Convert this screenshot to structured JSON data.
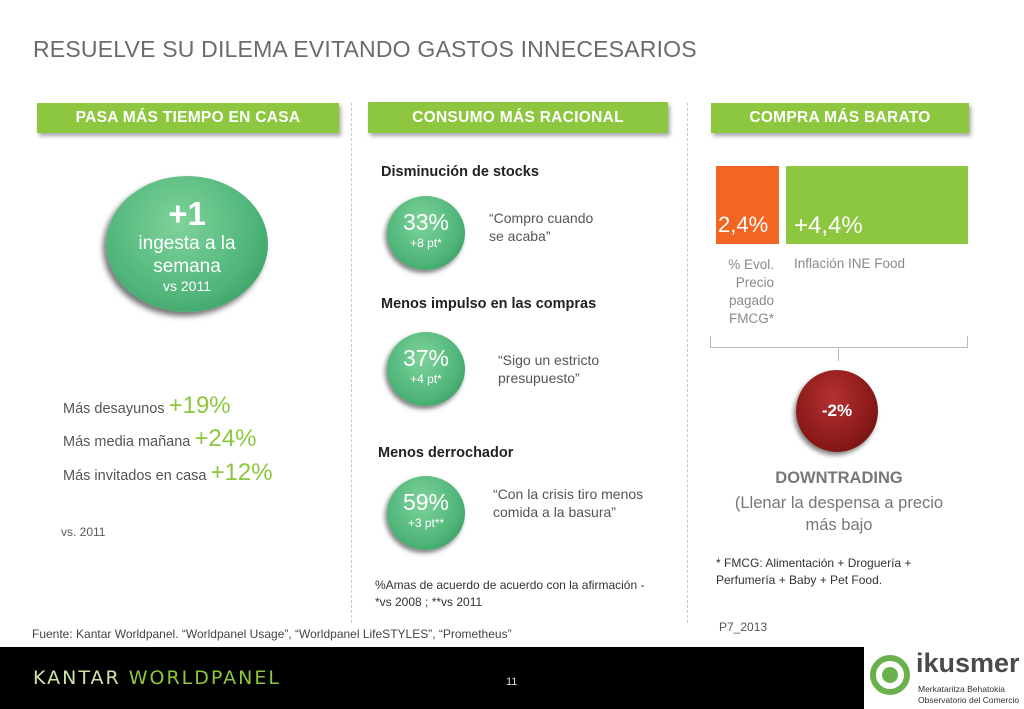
{
  "title": "RESUELVE SU DILEMA EVITANDO GASTOS INNECESARIOS",
  "colors": {
    "accent_green": "#8dc63f",
    "orange": "#f26522",
    "dark_red": "#8b1a1a",
    "bubble_green": "#4fb57a"
  },
  "col1": {
    "banner": "PASA MÁS TIEMPO EN CASA",
    "bubble": {
      "big": "+1",
      "line2": "ingesta a la",
      "line3": "semana",
      "line4": "vs 2011"
    },
    "metrics": [
      {
        "label": "Más desayunos",
        "value": "+19%"
      },
      {
        "label": "Más media mañana",
        "value": "+24%"
      },
      {
        "label": "Más invitados en casa",
        "value": "+12%"
      }
    ],
    "note": "vs. 2011"
  },
  "col2": {
    "banner": "CONSUMO MÁS RACIONAL",
    "sections": [
      {
        "heading": "Disminución de stocks",
        "pct": "33%",
        "delta": "+8 pt*",
        "quote_l1": "“Compro cuando",
        "quote_l2": "se acaba”"
      },
      {
        "heading": "Menos impulso en las compras",
        "pct": "37%",
        "delta": "+4 pt*",
        "quote_l1": "“Sigo un estricto",
        "quote_l2": "presupuesto”"
      },
      {
        "heading": "Menos derrochador",
        "pct": "59%",
        "delta": "+3 pt**",
        "quote_l1": "“Con la crisis tiro menos",
        "quote_l2": "comida a la basura”"
      }
    ],
    "footnote_l1": "%Amas de acuerdo de acuerdo con la afirmación -",
    "footnote_l2": "*vs 2008 ; **vs 2011"
  },
  "col3": {
    "banner": "COMPRA MÁS BARATO",
    "bar1": {
      "value": "2,4%",
      "label_l1": "% Evol.",
      "label_l2": "Precio",
      "label_l3": "pagado",
      "label_l4": "FMCG*"
    },
    "bar2": {
      "value": "+4,4%",
      "label": "Inflación INE Food"
    },
    "diff": "-2%",
    "downtrading": "DOWNTRADING",
    "desc_l1": "(Llenar la despensa a precio",
    "desc_l2": "más bajo",
    "fmcg_note_l1": "* FMCG: Alimentación + Droguería +",
    "fmcg_note_l2": "Perfumería + Baby + Pet Food.",
    "code": "P7_2013"
  },
  "source": "Fuente: Kantar Worldpanel. “Worldpanel Usage”, “Worldpanel LifeSTYLES”, “Prometheus”",
  "footer": {
    "brand_left": "KANTAR",
    "brand_right": "WORLDPANEL",
    "page": "11",
    "partner": "ikusmer",
    "partner_l1": "Merkataritza Behatokia",
    "partner_l2": "Observatorio del Comercio"
  }
}
